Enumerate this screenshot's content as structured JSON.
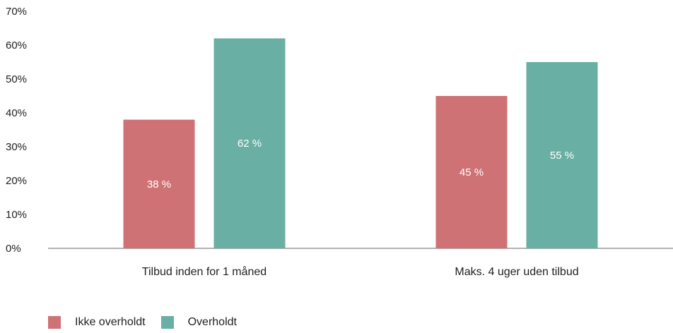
{
  "chart_data": {
    "type": "bar",
    "categories": [
      "Tilbud inden for 1 måned",
      "Maks. 4 uger uden tilbud"
    ],
    "series": [
      {
        "name": "Ikke overholdt",
        "values": [
          38,
          45
        ],
        "labels": [
          "38 %",
          "45 %"
        ],
        "color": "#cf7275"
      },
      {
        "name": "Overholdt",
        "values": [
          62,
          55
        ],
        "labels": [
          "62 %",
          "55 %"
        ],
        "color": "#6aafa3"
      }
    ],
    "yticks": [
      "0%",
      "10%",
      "20%",
      "30%",
      "40%",
      "50%",
      "60%",
      "70%"
    ],
    "ylim": [
      0,
      70
    ],
    "xlabel": "",
    "ylabel": "",
    "title": "",
    "grid": false,
    "legend_position": "bottom-left"
  }
}
